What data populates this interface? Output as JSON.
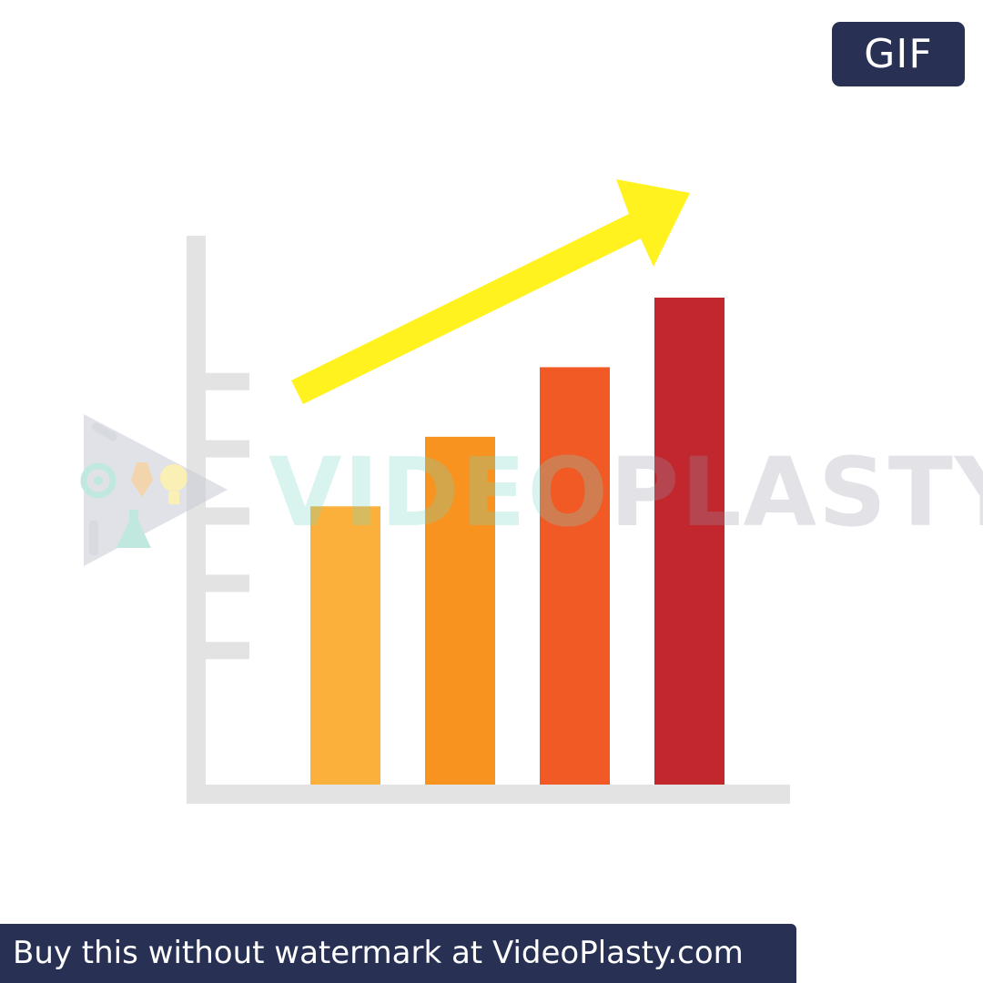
{
  "badge": {
    "label": "GIF"
  },
  "watermark": {
    "part1": "VIDEO",
    "part2": "PLASTY",
    "banner_text": "Buy this without watermark at VideoPlasty.com"
  },
  "colors": {
    "navy": "#283054",
    "axis": "#e3e3e3",
    "arrow": "#fff21e",
    "bars": [
      "#fbb03b",
      "#f7931e",
      "#f15a24",
      "#c1272d"
    ]
  },
  "icons": [
    "growth-arrow-icon",
    "play-triangle-icon",
    "gear-icon",
    "lightbulb-icon",
    "flask-icon",
    "pen-nib-icon",
    "wrench-icon"
  ],
  "chart_data": {
    "type": "bar",
    "values": [
      4,
      5,
      6,
      7
    ],
    "ylim": [
      0,
      8
    ],
    "grid": false,
    "legend": "none"
  }
}
